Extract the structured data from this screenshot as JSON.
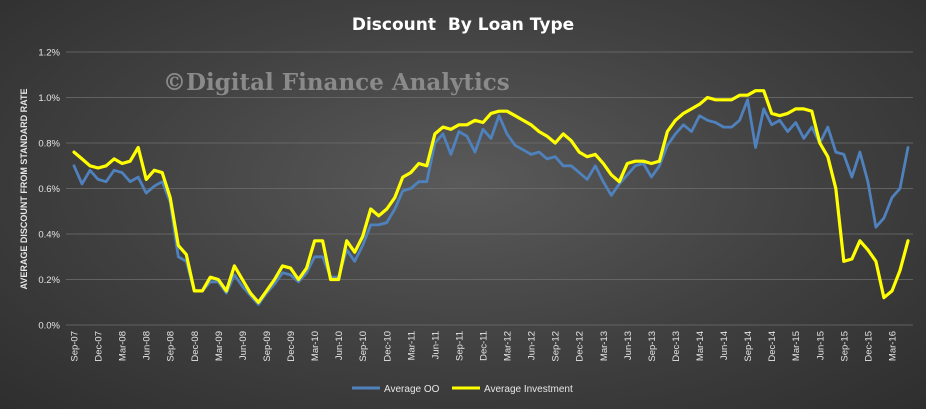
{
  "chart_data": {
    "type": "line",
    "title": "Discount  By Loan Type",
    "watermark": "©Digital Finance Analytics",
    "ylabel": "AVERAGE DISCOUNT FROM STANDARD RATE",
    "xlabel": "",
    "ylim": [
      0,
      1.2
    ],
    "yticks": [
      "0.0%",
      "0.2%",
      "0.4%",
      "0.6%",
      "0.8%",
      "1.0%",
      "1.2%"
    ],
    "ytick_values": [
      0,
      0.2,
      0.4,
      0.6,
      0.8,
      1.0,
      1.2
    ],
    "grid": true,
    "legend_position": "bottom",
    "x_labels": [
      "Sep-07",
      "Dec-07",
      "Mar-08",
      "Jun-08",
      "Sep-08",
      "Dec-08",
      "Mar-09",
      "Jun-09",
      "Sep-09",
      "Dec-09",
      "Mar-10",
      "Jun-10",
      "Sep-10",
      "Dec-10",
      "Mar-11",
      "Jun-11",
      "Sep-11",
      "Dec-11",
      "Mar-12",
      "Jun-12",
      "Sep-12",
      "Dec-12",
      "Mar-13",
      "Jun-13",
      "Sep-13",
      "Dec-13",
      "Mar-14",
      "Jun-14",
      "Sep-14",
      "Dec-14",
      "Mar-15",
      "Jun-15",
      "Sep-15",
      "Dec-15",
      "Mar-16"
    ],
    "x_label_interval": 3,
    "series": [
      {
        "name": "Average OO",
        "color": "#4f81bd",
        "values": [
          0.7,
          0.62,
          0.68,
          0.64,
          0.63,
          0.68,
          0.67,
          0.63,
          0.65,
          0.58,
          0.61,
          0.63,
          0.54,
          0.3,
          0.28,
          0.15,
          0.15,
          0.19,
          0.19,
          0.14,
          0.22,
          0.17,
          0.13,
          0.09,
          0.14,
          0.18,
          0.23,
          0.22,
          0.19,
          0.23,
          0.3,
          0.3,
          0.21,
          0.21,
          0.33,
          0.28,
          0.35,
          0.44,
          0.44,
          0.45,
          0.51,
          0.59,
          0.6,
          0.63,
          0.63,
          0.8,
          0.84,
          0.75,
          0.85,
          0.83,
          0.76,
          0.86,
          0.82,
          0.92,
          0.84,
          0.79,
          0.77,
          0.75,
          0.76,
          0.73,
          0.74,
          0.7,
          0.7,
          0.67,
          0.64,
          0.7,
          0.63,
          0.57,
          0.62,
          0.66,
          0.7,
          0.71,
          0.65,
          0.7,
          0.79,
          0.84,
          0.88,
          0.85,
          0.92,
          0.9,
          0.89,
          0.87,
          0.87,
          0.9,
          0.99,
          0.78,
          0.95,
          0.88,
          0.9,
          0.85,
          0.89,
          0.82,
          0.87,
          0.8,
          0.87,
          0.76,
          0.75,
          0.65,
          0.76,
          0.63,
          0.43,
          0.47,
          0.56,
          0.6,
          0.78
        ]
      },
      {
        "name": "Average Investment",
        "color": "#ffff00",
        "values": [
          0.76,
          0.73,
          0.7,
          0.69,
          0.7,
          0.73,
          0.71,
          0.72,
          0.78,
          0.64,
          0.68,
          0.67,
          0.56,
          0.35,
          0.31,
          0.15,
          0.15,
          0.21,
          0.2,
          0.15,
          0.26,
          0.2,
          0.14,
          0.1,
          0.15,
          0.2,
          0.26,
          0.25,
          0.2,
          0.25,
          0.37,
          0.37,
          0.2,
          0.2,
          0.37,
          0.32,
          0.39,
          0.51,
          0.48,
          0.51,
          0.56,
          0.65,
          0.67,
          0.71,
          0.7,
          0.84,
          0.87,
          0.86,
          0.88,
          0.88,
          0.9,
          0.89,
          0.93,
          0.94,
          0.94,
          0.92,
          0.9,
          0.88,
          0.85,
          0.83,
          0.8,
          0.84,
          0.81,
          0.76,
          0.74,
          0.75,
          0.71,
          0.66,
          0.63,
          0.71,
          0.72,
          0.72,
          0.71,
          0.72,
          0.85,
          0.9,
          0.93,
          0.95,
          0.97,
          1.0,
          0.99,
          0.99,
          0.99,
          1.01,
          1.01,
          1.03,
          1.03,
          0.93,
          0.92,
          0.93,
          0.95,
          0.95,
          0.94,
          0.8,
          0.74,
          0.6,
          0.28,
          0.29,
          0.37,
          0.33,
          0.28,
          0.12,
          0.15,
          0.24,
          0.37
        ]
      }
    ]
  }
}
